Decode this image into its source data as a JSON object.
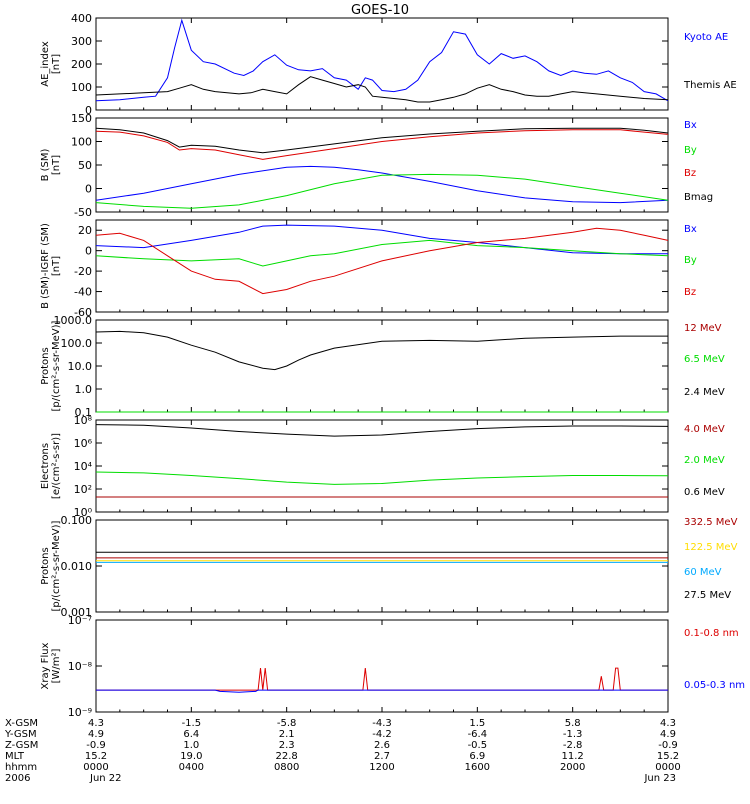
{
  "title": "GOES-10",
  "colors": {
    "blue": "#0000ff",
    "red": "#dd0000",
    "green": "#00dd00",
    "black": "#000000",
    "darkred": "#aa0000",
    "yellow": "#ffdd00",
    "cyan": "#00aaff"
  },
  "chart_data": [
    {
      "type": "line",
      "ylabel": [
        "AE_index",
        "[nT]"
      ],
      "yscale": "linear",
      "ylim": [
        0,
        400
      ],
      "ticks": [
        {
          "v": 0,
          "label": "0"
        },
        {
          "v": 100,
          "label": "100"
        },
        {
          "v": 200,
          "label": "200"
        },
        {
          "v": 300,
          "label": "300"
        },
        {
          "v": 400,
          "label": "400"
        }
      ],
      "series": [
        {
          "name": "Kyoto AE",
          "color": "#0000ff",
          "x": [
            0,
            1,
            2,
            2.5,
            3,
            3.3,
            3.6,
            4,
            4.5,
            5,
            5.8,
            6.2,
            6.6,
            7,
            7.5,
            8,
            8.5,
            9,
            9.5,
            10,
            10.5,
            11,
            11.3,
            11.6,
            12,
            12.5,
            13,
            13.5,
            14,
            14.5,
            15,
            15.5,
            16,
            16.5,
            17,
            17.5,
            18,
            18.5,
            19,
            19.5,
            20,
            20.5,
            21,
            21.5,
            22,
            22.5,
            23,
            23.5,
            24
          ],
          "y": [
            40,
            45,
            55,
            60,
            140,
            270,
            390,
            260,
            210,
            200,
            160,
            150,
            170,
            210,
            240,
            195,
            175,
            170,
            180,
            140,
            130,
            90,
            140,
            130,
            85,
            80,
            90,
            130,
            210,
            250,
            340,
            330,
            240,
            200,
            245,
            225,
            235,
            210,
            170,
            150,
            170,
            160,
            155,
            170,
            140,
            120,
            80,
            70,
            40
          ]
        },
        {
          "name": "Themis AE",
          "color": "#000000",
          "x": [
            0,
            1,
            2,
            3,
            3.5,
            4,
            4.5,
            5,
            5.5,
            6,
            6.5,
            7,
            7.5,
            8,
            8.5,
            9,
            9.5,
            10,
            10.5,
            11,
            11.3,
            11.6,
            12,
            12.5,
            13,
            13.5,
            14,
            14.5,
            15,
            15.5,
            16,
            16.5,
            17,
            17.5,
            18,
            18.5,
            19,
            19.5,
            20,
            21,
            22,
            23,
            24
          ],
          "y": [
            65,
            70,
            75,
            80,
            95,
            110,
            90,
            80,
            75,
            70,
            75,
            90,
            80,
            70,
            110,
            145,
            130,
            115,
            100,
            110,
            100,
            60,
            55,
            50,
            45,
            35,
            35,
            45,
            55,
            70,
            95,
            110,
            90,
            80,
            65,
            60,
            60,
            70,
            80,
            70,
            60,
            50,
            45
          ]
        }
      ]
    },
    {
      "type": "line",
      "ylabel": [
        "B (SM)",
        "[nT]"
      ],
      "yscale": "linear",
      "ylim": [
        -50,
        150
      ],
      "ticks": [
        {
          "v": -50,
          "label": "-50"
        },
        {
          "v": 0,
          "label": "0"
        },
        {
          "v": 50,
          "label": "50"
        },
        {
          "v": 100,
          "label": "100"
        },
        {
          "v": 150,
          "label": "150"
        }
      ],
      "series": [
        {
          "name": "Bx",
          "color": "#0000ff",
          "x": [
            0,
            2,
            4,
            6,
            8,
            9,
            10,
            11,
            12,
            14,
            16,
            18,
            20,
            22,
            24
          ],
          "y": [
            -25,
            -10,
            10,
            30,
            45,
            47,
            45,
            40,
            33,
            15,
            -5,
            -20,
            -28,
            -30,
            -25
          ]
        },
        {
          "name": "By",
          "color": "#00dd00",
          "x": [
            0,
            2,
            4,
            6,
            8,
            10,
            12,
            14,
            16,
            18,
            20,
            22,
            24
          ],
          "y": [
            -30,
            -38,
            -42,
            -35,
            -15,
            10,
            28,
            30,
            28,
            20,
            5,
            -10,
            -25
          ]
        },
        {
          "name": "Bz",
          "color": "#dd0000",
          "x": [
            0,
            1,
            2,
            3,
            3.5,
            4,
            5,
            6,
            7,
            8,
            10,
            12,
            14,
            16,
            18,
            20,
            22,
            23,
            24
          ],
          "y": [
            122,
            120,
            112,
            98,
            82,
            85,
            82,
            72,
            62,
            70,
            85,
            100,
            110,
            118,
            123,
            125,
            125,
            120,
            115
          ]
        },
        {
          "name": "Bmag",
          "color": "#000000",
          "x": [
            0,
            1,
            2,
            3,
            3.5,
            4,
            5,
            6,
            7,
            8,
            10,
            12,
            14,
            16,
            18,
            20,
            22,
            23,
            24
          ],
          "y": [
            128,
            125,
            118,
            102,
            88,
            92,
            90,
            82,
            76,
            82,
            95,
            108,
            116,
            122,
            127,
            128,
            128,
            124,
            118
          ]
        }
      ]
    },
    {
      "type": "line",
      "ylabel": [
        "B (SM)-IGRF (SM)",
        "[nT]"
      ],
      "yscale": "linear",
      "ylim": [
        -60,
        30
      ],
      "ticks": [
        {
          "v": -60,
          "label": "-60"
        },
        {
          "v": -40,
          "label": "-40"
        },
        {
          "v": -20,
          "label": "-20"
        },
        {
          "v": 0,
          "label": "0"
        },
        {
          "v": 20,
          "label": "20"
        }
      ],
      "series": [
        {
          "name": "Bx",
          "color": "#0000ff",
          "x": [
            0,
            2,
            4,
            6,
            7,
            8,
            10,
            12,
            14,
            16,
            18,
            20,
            22,
            24
          ],
          "y": [
            5,
            3,
            10,
            18,
            24,
            25,
            24,
            20,
            12,
            8,
            3,
            -2,
            -3,
            -3
          ]
        },
        {
          "name": "By",
          "color": "#00dd00",
          "x": [
            0,
            2,
            4,
            6,
            7,
            8,
            9,
            10,
            12,
            14,
            16,
            18,
            20,
            22,
            24
          ],
          "y": [
            -5,
            -8,
            -10,
            -8,
            -15,
            -10,
            -5,
            -3,
            6,
            10,
            5,
            3,
            0,
            -3,
            -5
          ]
        },
        {
          "name": "Bz",
          "color": "#dd0000",
          "x": [
            0,
            1,
            2,
            3,
            4,
            5,
            6,
            7,
            8,
            9,
            10,
            12,
            14,
            16,
            18,
            20,
            21,
            22,
            23,
            24
          ],
          "y": [
            15,
            17,
            10,
            -5,
            -20,
            -28,
            -30,
            -42,
            -38,
            -30,
            -25,
            -10,
            0,
            8,
            12,
            18,
            22,
            20,
            15,
            10
          ]
        }
      ]
    },
    {
      "type": "line",
      "ylabel": [
        "Protons",
        "[p/(cm²-s-sr-MeV)]"
      ],
      "yscale": "log",
      "ylim": [
        0.1,
        1000
      ],
      "ticks": [
        {
          "v": 0.1,
          "label": "0.1"
        },
        {
          "v": 1,
          "label": "1.0"
        },
        {
          "v": 10,
          "label": "10.0"
        },
        {
          "v": 100,
          "label": "100.0"
        },
        {
          "v": 1000,
          "label": "1000.0"
        }
      ],
      "series": [
        {
          "name": "12 MeV",
          "color": "#aa0000",
          "x": [
            0,
            24
          ],
          "y": [
            0.1,
            0.1
          ]
        },
        {
          "name": "6.5 MeV",
          "color": "#00dd00",
          "x": [
            0,
            24
          ],
          "y": [
            0.1,
            0.1
          ]
        },
        {
          "name": "2.4 MeV",
          "color": "#000000",
          "x": [
            0,
            1,
            2,
            3,
            4,
            5,
            6,
            7,
            7.5,
            8,
            8.5,
            9,
            10,
            12,
            14,
            16,
            18,
            20,
            22,
            24
          ],
          "y": [
            300,
            320,
            280,
            180,
            80,
            40,
            15,
            8,
            7,
            10,
            18,
            30,
            60,
            120,
            130,
            120,
            160,
            180,
            200,
            200
          ]
        }
      ]
    },
    {
      "type": "line",
      "ylabel": [
        "Electrons",
        "[e/(cm²-s-sr)]"
      ],
      "yscale": "log",
      "ylim": [
        1,
        100000000
      ],
      "ticks": [
        {
          "v": 1,
          "label": "10⁰"
        },
        {
          "v": 100,
          "label": "10²"
        },
        {
          "v": 10000,
          "label": "10⁴"
        },
        {
          "v": 1000000,
          "label": "10⁶"
        },
        {
          "v": 100000000,
          "label": "10⁸"
        }
      ],
      "series": [
        {
          "name": "4.0 MeV",
          "color": "#aa0000",
          "x": [
            0,
            24
          ],
          "y": [
            20,
            20
          ]
        },
        {
          "name": "2.0 MeV",
          "color": "#00dd00",
          "x": [
            0,
            2,
            4,
            6,
            8,
            10,
            12,
            14,
            16,
            18,
            20,
            22,
            24
          ],
          "y": [
            3000,
            2500,
            1500,
            800,
            400,
            250,
            300,
            600,
            900,
            1200,
            1500,
            1500,
            1400
          ]
        },
        {
          "name": "0.6 MeV",
          "color": "#000000",
          "x": [
            0,
            2,
            4,
            6,
            8,
            10,
            12,
            14,
            16,
            18,
            20,
            22,
            24
          ],
          "y": [
            40000000,
            35000000,
            20000000,
            10000000,
            6000000,
            4000000,
            5000000,
            10000000,
            18000000,
            25000000,
            30000000,
            30000000,
            28000000
          ]
        }
      ]
    },
    {
      "type": "line",
      "ylabel": [
        "Protons",
        "[p/(cm²-s-sr-MeV)]"
      ],
      "yscale": "log",
      "ylim": [
        0.001,
        0.1
      ],
      "ticks": [
        {
          "v": 0.001,
          "label": "0.001"
        },
        {
          "v": 0.01,
          "label": "0.010"
        },
        {
          "v": 0.1,
          "label": "0.100"
        }
      ],
      "series": [
        {
          "name": "332.5 MeV",
          "color": "#aa0000",
          "x": [
            0,
            24
          ],
          "y": [
            0.015,
            0.015
          ]
        },
        {
          "name": "122.5 MeV",
          "color": "#ffdd00",
          "x": [
            0,
            24
          ],
          "y": [
            0.013,
            0.013
          ]
        },
        {
          "name": "60 MeV",
          "color": "#00aaff",
          "x": [
            0,
            24
          ],
          "y": [
            0.012,
            0.012
          ]
        },
        {
          "name": "27.5 MeV",
          "color": "#000000",
          "x": [
            0,
            24
          ],
          "y": [
            0.02,
            0.02
          ]
        }
      ]
    },
    {
      "type": "line",
      "ylabel": [
        "Xray Flux",
        "[W/m²]"
      ],
      "yscale": "log",
      "ylim": [
        1e-09,
        1e-07
      ],
      "ticks": [
        {
          "v": 1e-09,
          "label": "10⁻⁹"
        },
        {
          "v": 1e-08,
          "label": "10⁻⁸"
        },
        {
          "v": 1e-07,
          "label": "10⁻⁷"
        }
      ],
      "series": [
        {
          "name": "0.1-0.8 nm",
          "color": "#dd0000",
          "x": [
            0,
            6.8,
            6.9,
            7,
            7.1,
            7.2,
            11.2,
            11.3,
            11.4,
            21.1,
            21.2,
            21.3,
            21.7,
            21.8,
            21.9,
            22,
            24
          ],
          "y": [
            3e-09,
            3e-09,
            9e-09,
            3e-09,
            9e-09,
            3e-09,
            3e-09,
            9e-09,
            3e-09,
            3e-09,
            6e-09,
            3e-09,
            3e-09,
            9e-09,
            9e-09,
            3e-09,
            3e-09
          ]
        },
        {
          "name": "0.05-0.3 nm",
          "color": "#0000ff",
          "x": [
            0,
            5,
            5.2,
            6,
            6.7,
            6.8,
            24
          ],
          "y": [
            3e-09,
            3e-09,
            2.8e-09,
            2.7e-09,
            2.8e-09,
            3e-09,
            3e-09
          ]
        }
      ]
    }
  ],
  "xaxis": {
    "rows": [
      {
        "label": "X-GSM",
        "values": [
          "4.3",
          "-1.5",
          "-5.8",
          "-4.3",
          "1.5",
          "5.8",
          "4.3"
        ]
      },
      {
        "label": "Y-GSM",
        "values": [
          "4.9",
          "6.4",
          "2.1",
          "-4.2",
          "-6.4",
          "-1.3",
          "4.9"
        ]
      },
      {
        "label": "Z-GSM",
        "values": [
          "-0.9",
          "1.0",
          "2.3",
          "2.6",
          "-0.5",
          "-2.8",
          "-0.9"
        ]
      },
      {
        "label": "MLT",
        "values": [
          "15.2",
          "19.0",
          "22.8",
          "2.7",
          "6.9",
          "11.2",
          "15.2"
        ]
      },
      {
        "label": "hhmm",
        "values": [
          "0000",
          "0400",
          "0800",
          "1200",
          "1600",
          "2000",
          "0000"
        ]
      },
      {
        "label": "2006",
        "values": [
          "Jun 22",
          "",
          "",
          "",
          "",
          "",
          "Jun 23"
        ]
      }
    ],
    "hours": [
      0,
      4,
      8,
      12,
      16,
      20,
      24
    ]
  }
}
